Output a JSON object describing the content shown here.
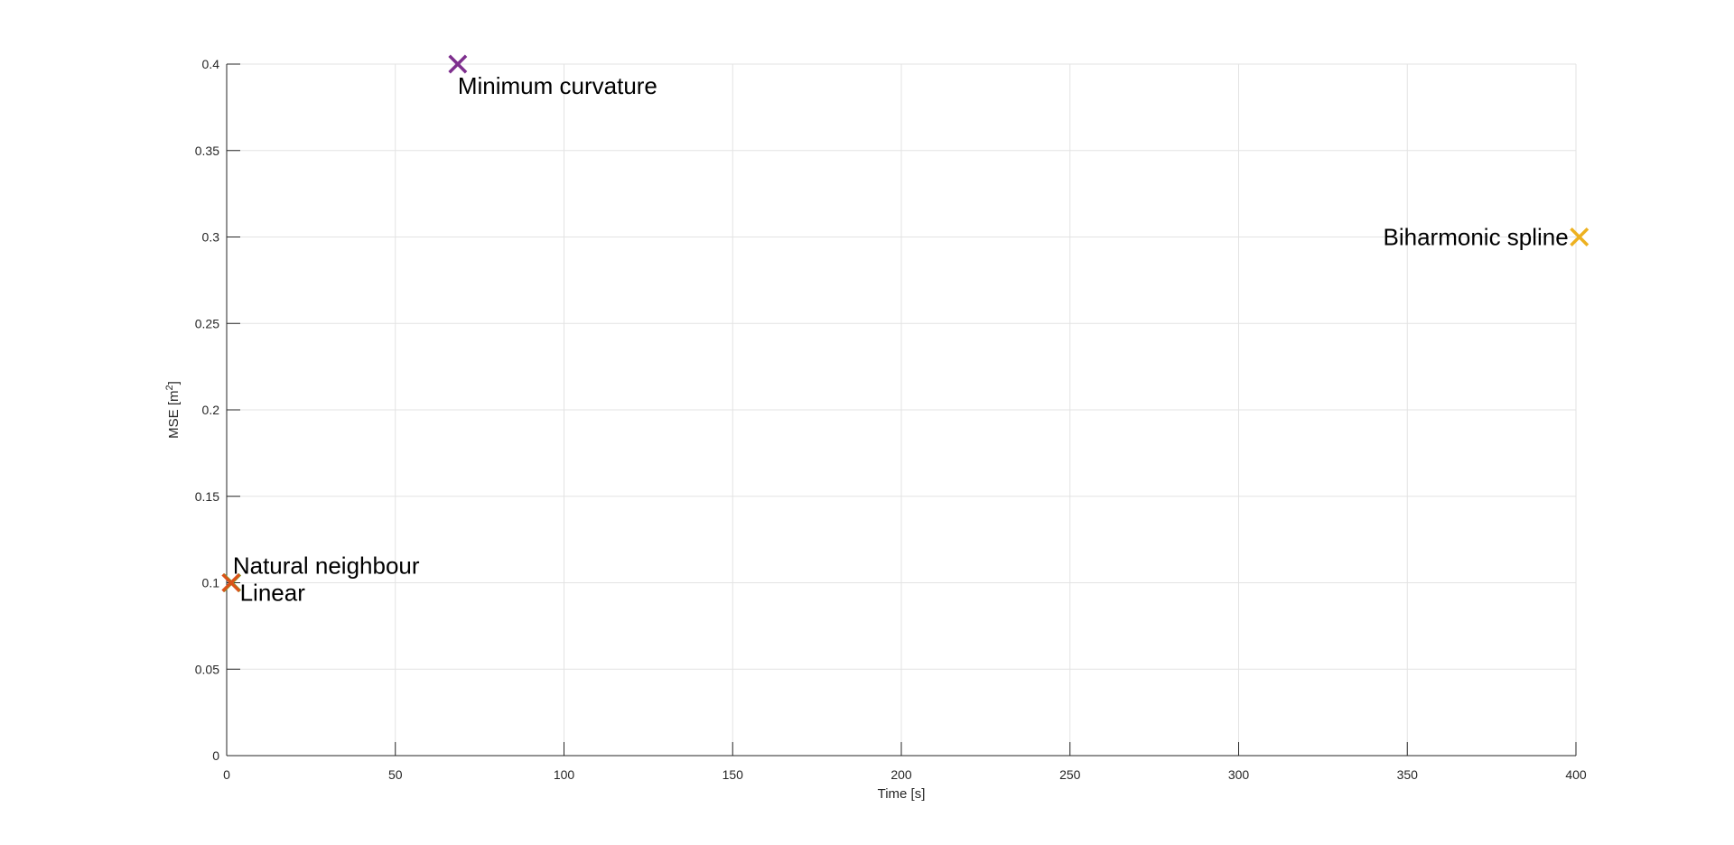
{
  "chart_data": {
    "type": "scatter",
    "title": "",
    "xlabel": "Time [s]",
    "ylabel_base": "MSE [m",
    "ylabel_sup": "2",
    "ylabel_end": "]",
    "xlim": [
      0,
      400
    ],
    "ylim": [
      0,
      0.4
    ],
    "xticks": [
      0,
      50,
      100,
      150,
      200,
      250,
      300,
      350,
      400
    ],
    "xtick_labels": [
      "0",
      "50",
      "100",
      "150",
      "200",
      "250",
      "300",
      "350",
      "400"
    ],
    "yticks": [
      0,
      0.05,
      0.1,
      0.15,
      0.2,
      0.25,
      0.3,
      0.35,
      0.4
    ],
    "ytick_labels": [
      "0",
      "0.05",
      "0.1",
      "0.15",
      "0.2",
      "0.25",
      "0.3",
      "0.35",
      "0.4"
    ],
    "grid": true,
    "marker": "x",
    "points": [
      {
        "x": 1.5,
        "y": 0.1,
        "label": "Linear",
        "color": "#77AC30"
      },
      {
        "x": 1.3,
        "y": 0.1,
        "label": "Natural neighbour",
        "color": "#D95319"
      },
      {
        "x": 68.5,
        "y": 0.4,
        "label": "Minimum curvature",
        "color": "#7E2F8E"
      },
      {
        "x": 401,
        "y": 0.3,
        "label": "Biharmonic spline",
        "color": "#EDB120"
      }
    ],
    "colors": {
      "axis": "#262626",
      "grid": "#e3e3e3"
    }
  }
}
